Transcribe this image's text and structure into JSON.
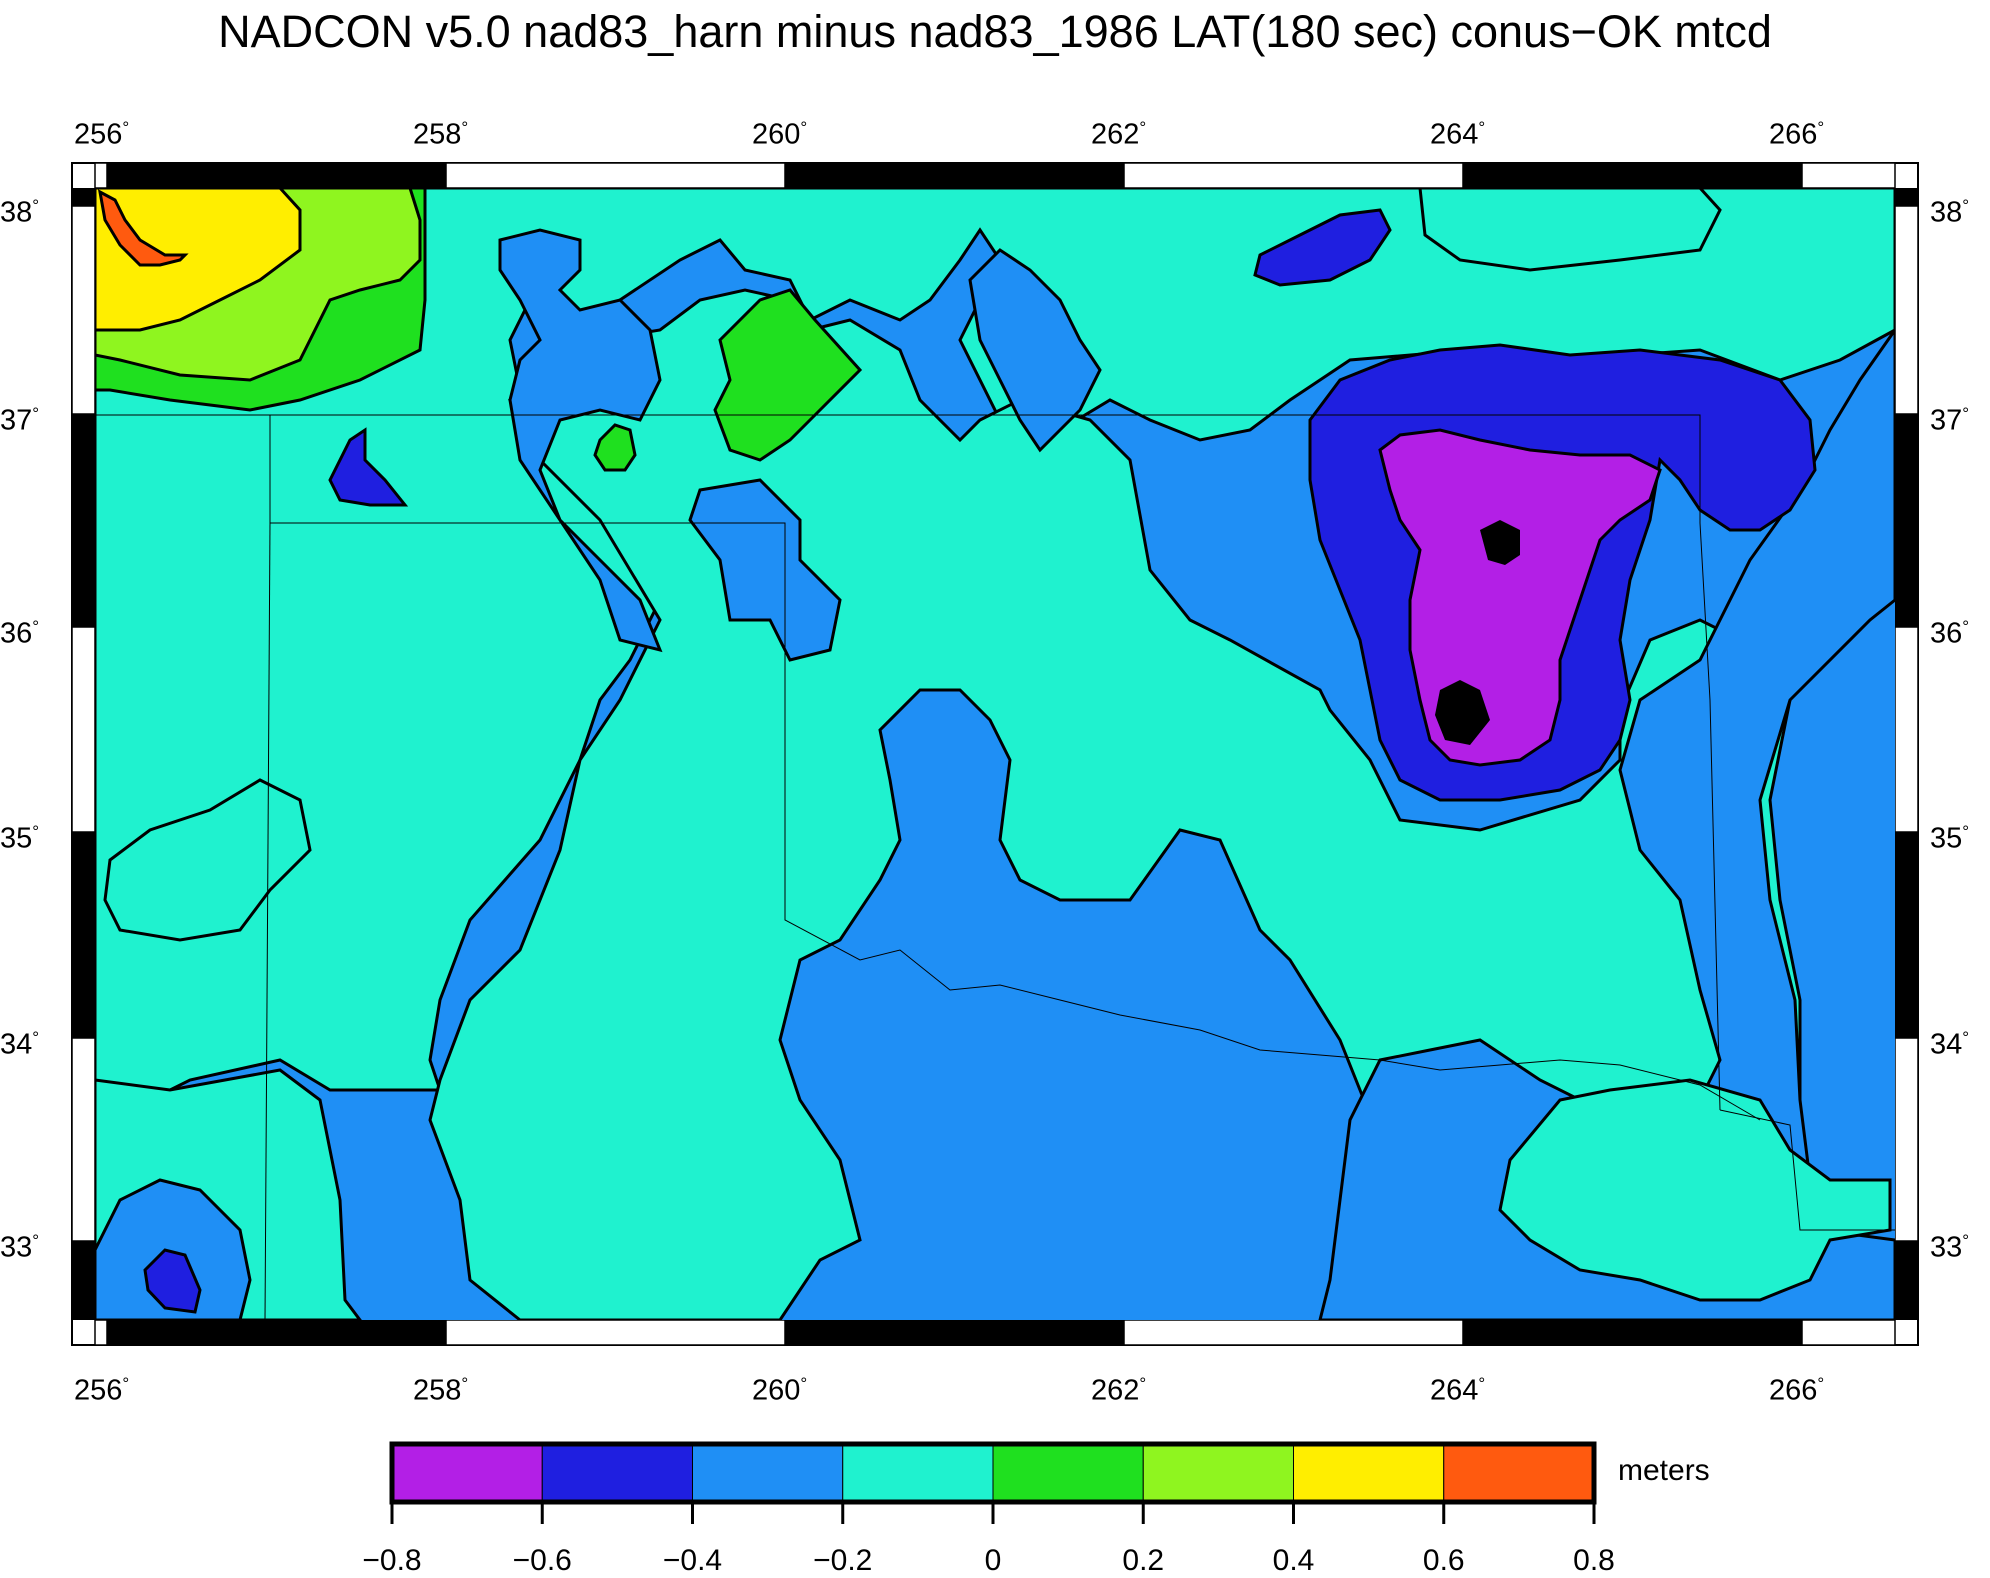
{
  "title": "NADCON v5.0 nad83_harn minus nad83_1986 LAT(180 sec) conus−OK mtcd",
  "lon_ticks": [
    "256",
    "258",
    "260",
    "262",
    "264",
    "266"
  ],
  "lat_ticks": [
    "38",
    "37",
    "36",
    "35",
    "34",
    "33"
  ],
  "degree_symbol": "°",
  "colorbar": {
    "units": "meters",
    "labels": [
      "−0.8",
      "−0.6",
      "−0.4",
      "−0.2",
      "0",
      "0.2",
      "0.4",
      "0.6",
      "0.8"
    ],
    "colors": [
      "#b31fe6",
      "#1f1fe0",
      "#1f8ff5",
      "#1ff2cf",
      "#1fe01f",
      "#8ff51f",
      "#ffee00",
      "#ff5a0f"
    ]
  },
  "map_colors": {
    "band_minus_0_8": "#b31fe6",
    "band_minus_0_6": "#1f1fe0",
    "band_minus_0_4": "#1f8ff5",
    "band_minus_0_2": "#1ff2cf",
    "band_0": "#1fe01f",
    "band_0_2": "#8ff51f",
    "band_0_4": "#ffee00",
    "band_0_6": "#ff5a0f",
    "low_extreme": "#000000"
  }
}
